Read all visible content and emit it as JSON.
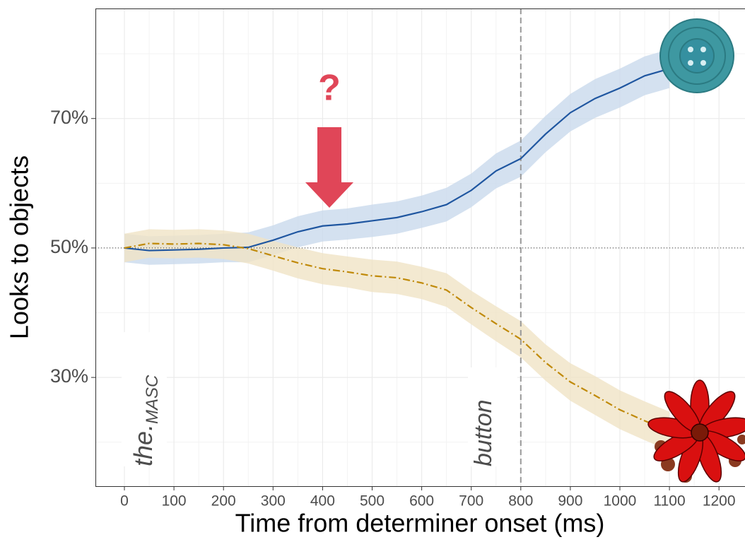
{
  "chart_data": {
    "type": "line",
    "x_label": "Time from determiner onset (ms)",
    "y_label": "Looks to objects",
    "xlim": [
      -58.5,
      1252.5
    ],
    "ylim": [
      13.2,
      87
    ],
    "xticks": [
      0,
      100,
      200,
      300,
      400,
      500,
      600,
      700,
      800,
      900,
      1000,
      1100,
      1200
    ],
    "yticks": [
      {
        "value": 30,
        "label": "30%"
      },
      {
        "value": 50,
        "label": "50%"
      },
      {
        "value": 70,
        "label": "70%"
      }
    ],
    "grid": true,
    "reference_lines": {
      "x": 800,
      "y": 50
    },
    "x": [
      0,
      50,
      100,
      150,
      200,
      250,
      300,
      350,
      400,
      450,
      500,
      550,
      600,
      650,
      700,
      750,
      800,
      850,
      900,
      950,
      1000,
      1050,
      1100
    ],
    "series": [
      {
        "color": "#1f56a0",
        "band_color": "#c9d9ec",
        "dash": "solid",
        "values": [
          50,
          49.6,
          49.7,
          49.8,
          50,
          50.1,
          51.2,
          52.5,
          53.4,
          53.7,
          54.2,
          54.7,
          55.6,
          56.7,
          58.9,
          61.9,
          63.8,
          67.6,
          70.9,
          73.1,
          74.7,
          76.6,
          77.7
        ],
        "errors": [
          2.2,
          2.2,
          2.2,
          2.2,
          2.2,
          2.3,
          2.3,
          2.4,
          2.4,
          2.4,
          2.5,
          2.5,
          2.5,
          2.6,
          2.6,
          2.7,
          2.8,
          2.8,
          2.9,
          3,
          3,
          3,
          3
        ]
      },
      {
        "color": "#c08a0a",
        "band_color": "#f0e3c6",
        "dash": "10 4 2 4",
        "values": [
          50,
          50.7,
          50.6,
          50.7,
          50.5,
          49.9,
          48.8,
          47.7,
          46.8,
          46.3,
          45.7,
          45.4,
          44.6,
          43.5,
          40.8,
          38.3,
          35.9,
          32.3,
          29.3,
          27.2,
          25,
          23.3,
          21.7
        ],
        "errors": [
          2.2,
          2.2,
          2.2,
          2.2,
          2.2,
          2.3,
          2.3,
          2.4,
          2.4,
          2.4,
          2.5,
          2.5,
          2.5,
          2.6,
          2.6,
          2.7,
          2.8,
          2.8,
          2.9,
          3,
          3,
          3,
          3
        ]
      }
    ],
    "annotations": {
      "determiner": "the.",
      "gender": "MASC",
      "noun": "button",
      "question": "?"
    }
  }
}
